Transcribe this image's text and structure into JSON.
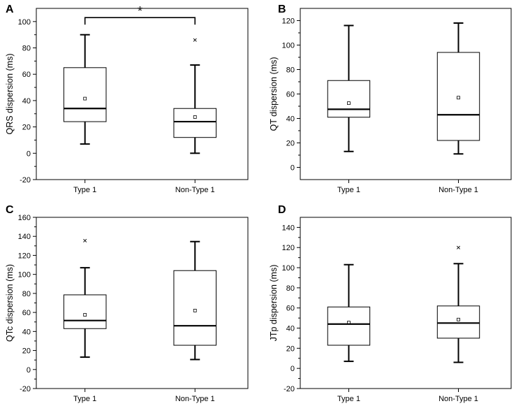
{
  "figure": {
    "panel_count": 4
  },
  "chart_data": [
    {
      "type": "boxplot",
      "panel": "A",
      "ylabel": "QRS dispersion (ms)",
      "ylim": [
        -20,
        110
      ],
      "yticks": [
        -20,
        0,
        20,
        40,
        60,
        80,
        100
      ],
      "categories": [
        "Type 1",
        "Non-Type 1"
      ],
      "boxes": [
        {
          "whisker_low": 7,
          "q1": 24,
          "median": 34,
          "q3": 65,
          "whisker_high": 90,
          "mean": 41.5,
          "outliers": []
        },
        {
          "whisker_low": 0,
          "q1": 12,
          "median": 24,
          "q3": 34,
          "whisker_high": 67,
          "mean": 27.5,
          "outliers": [
            86
          ]
        }
      ],
      "significance": {
        "label": "*",
        "between": [
          0,
          1
        ],
        "y": 103
      }
    },
    {
      "type": "boxplot",
      "panel": "B",
      "ylabel": "QT dispersion (ms)",
      "ylim": [
        -10,
        130
      ],
      "yticks": [
        0,
        20,
        40,
        60,
        80,
        100,
        120
      ],
      "categories": [
        "Type 1",
        "Non-Type 1"
      ],
      "boxes": [
        {
          "whisker_low": 13,
          "q1": 41,
          "median": 47.5,
          "q3": 71,
          "whisker_high": 116,
          "mean": 52.5,
          "outliers": []
        },
        {
          "whisker_low": 11,
          "q1": 22,
          "median": 43,
          "q3": 94,
          "whisker_high": 118,
          "mean": 57,
          "outliers": []
        }
      ]
    },
    {
      "type": "boxplot",
      "panel": "C",
      "ylabel": "QTc dispersion (ms)",
      "ylim": [
        -20,
        160
      ],
      "yticks": [
        -20,
        0,
        20,
        40,
        60,
        80,
        100,
        120,
        140,
        160
      ],
      "categories": [
        "Type 1",
        "Non-Type 1"
      ],
      "boxes": [
        {
          "whisker_low": 13,
          "q1": 43,
          "median": 51.5,
          "q3": 78.5,
          "whisker_high": 107,
          "mean": 57.5,
          "outliers": [
            135.5
          ]
        },
        {
          "whisker_low": 10.5,
          "q1": 25.5,
          "median": 46,
          "q3": 104,
          "whisker_high": 134.5,
          "mean": 62,
          "outliers": []
        }
      ]
    },
    {
      "type": "boxplot",
      "panel": "D",
      "ylabel": "JTp dispersion (ms)",
      "ylim": [
        -20,
        150
      ],
      "yticks": [
        -20,
        0,
        20,
        40,
        60,
        80,
        100,
        120,
        140
      ],
      "categories": [
        "Type 1",
        "Non-Type 1"
      ],
      "boxes": [
        {
          "whisker_low": 7,
          "q1": 23,
          "median": 44,
          "q3": 61,
          "whisker_high": 103,
          "mean": 45.5,
          "outliers": []
        },
        {
          "whisker_low": 6,
          "q1": 30,
          "median": 45,
          "q3": 62,
          "whisker_high": 104,
          "mean": 48.5,
          "outliers": [
            120
          ]
        }
      ]
    }
  ]
}
